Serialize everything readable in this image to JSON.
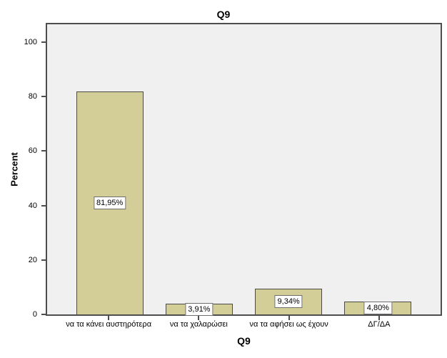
{
  "chart_data": {
    "type": "bar",
    "title": "Q9",
    "xlabel": "Q9",
    "ylabel": "Percent",
    "categories": [
      "να τα κάνει αυστηρότερα",
      "να τα χαλαρώσει",
      "να τα αφήσει ως έχουν",
      "ΔΓ/ΔΑ"
    ],
    "values": [
      81.95,
      3.91,
      9.34,
      4.8
    ],
    "value_labels": [
      "81,95%",
      "3,91%",
      "9,34%",
      "4,80%"
    ],
    "y_ticks": [
      0,
      20,
      40,
      60,
      80,
      100
    ],
    "ylim": [
      0,
      106.5
    ],
    "grid": false,
    "legend": "none",
    "colors": {
      "bar_fill": "#d3cd97",
      "bar_border": "#4b4b44",
      "plot_bg": "#f0f0f0",
      "frame": "#4e4e4e",
      "label_box_bg": "#ffffff",
      "label_box_border": "#6e6e6e"
    }
  }
}
